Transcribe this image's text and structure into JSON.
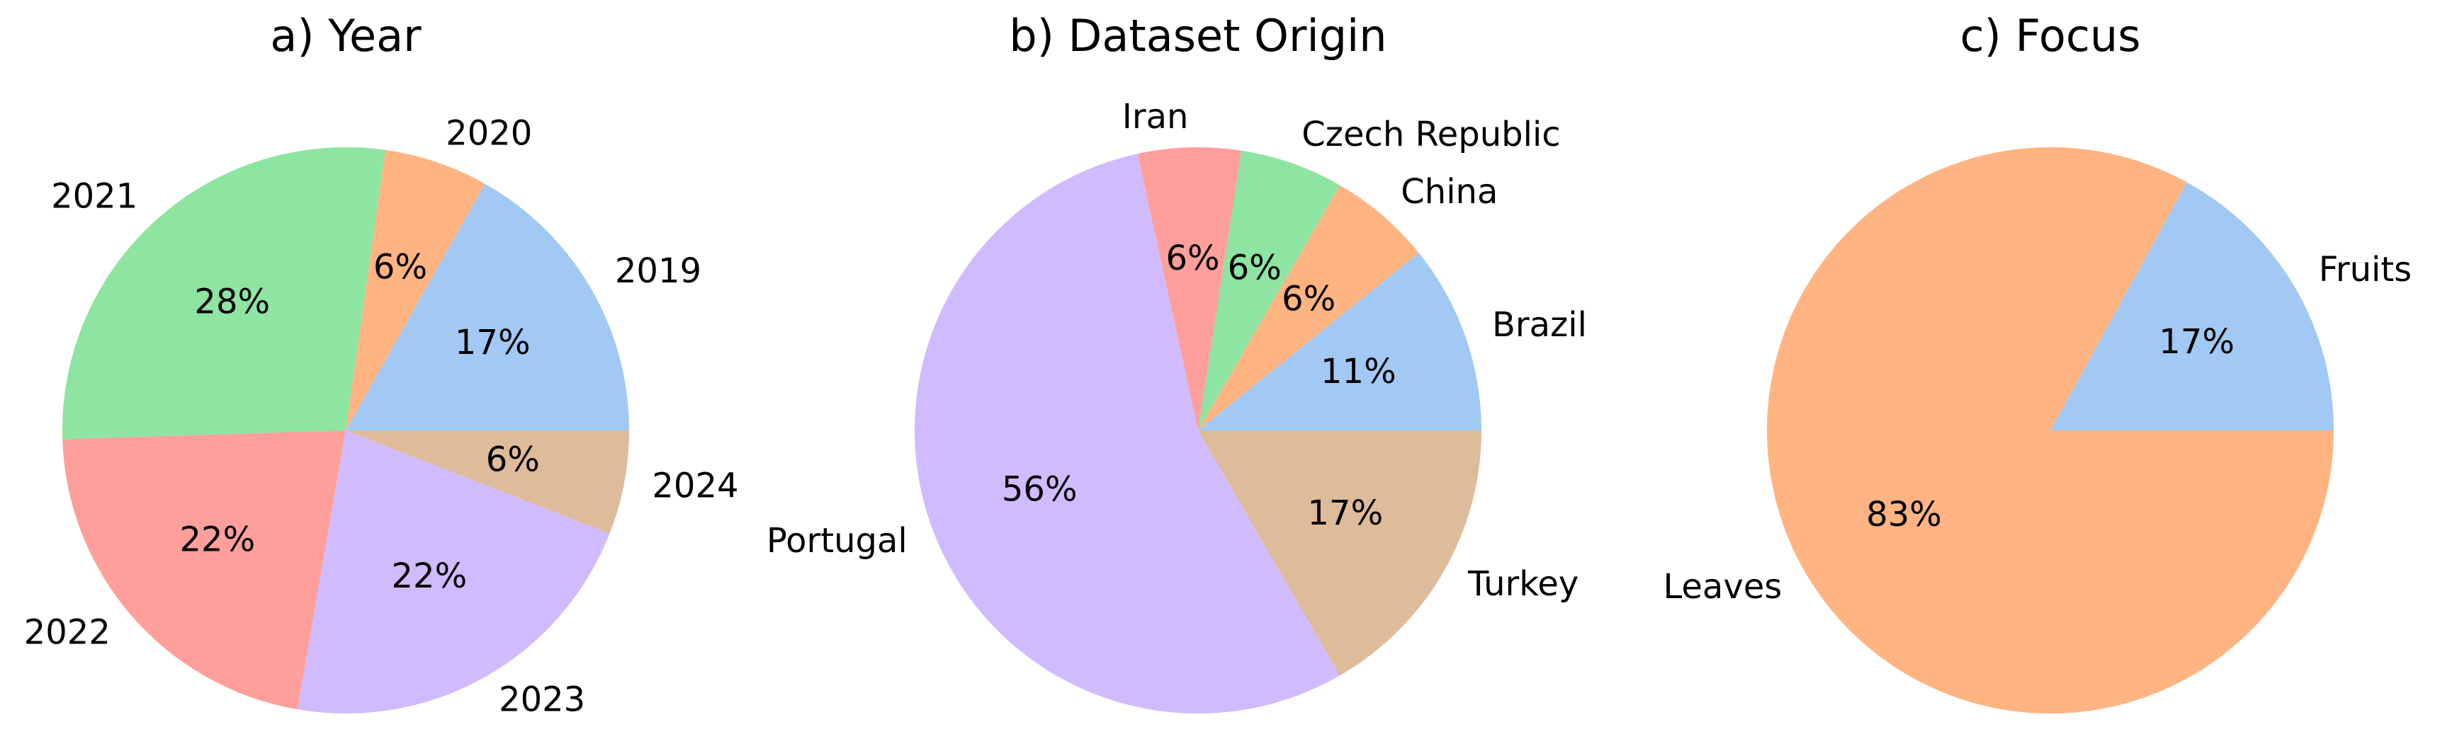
{
  "chart_data": [
    {
      "type": "pie",
      "title": "a) Year",
      "categories": [
        "2019",
        "2020",
        "2021",
        "2022",
        "2023",
        "2024"
      ],
      "values": [
        17,
        6,
        28,
        22,
        22,
        6
      ],
      "value_labels": [
        "17%",
        "6%",
        "28%",
        "22%",
        "22%",
        "6%"
      ],
      "colors": [
        "#a1c9f4",
        "#ffb482",
        "#8de5a1",
        "#ff9f9b",
        "#d0bbff",
        "#debb9b"
      ]
    },
    {
      "type": "pie",
      "title": "b) Dataset Origin",
      "categories": [
        "Brazil",
        "China",
        "Czech Republic",
        "Iran",
        "Portugal",
        "Turkey"
      ],
      "values": [
        11,
        6,
        6,
        6,
        56,
        17
      ],
      "value_labels": [
        "11%",
        "6%",
        "6%",
        "6%",
        "56%",
        "17%"
      ],
      "colors": [
        "#a1c9f4",
        "#ffb482",
        "#8de5a1",
        "#ff9f9b",
        "#d0bbff",
        "#debb9b"
      ]
    },
    {
      "type": "pie",
      "title": "c) Focus",
      "categories": [
        "Fruits",
        "Leaves"
      ],
      "values": [
        17,
        83
      ],
      "value_labels": [
        "17%",
        "83%"
      ],
      "colors": [
        "#a1c9f4",
        "#ffb482"
      ]
    }
  ]
}
